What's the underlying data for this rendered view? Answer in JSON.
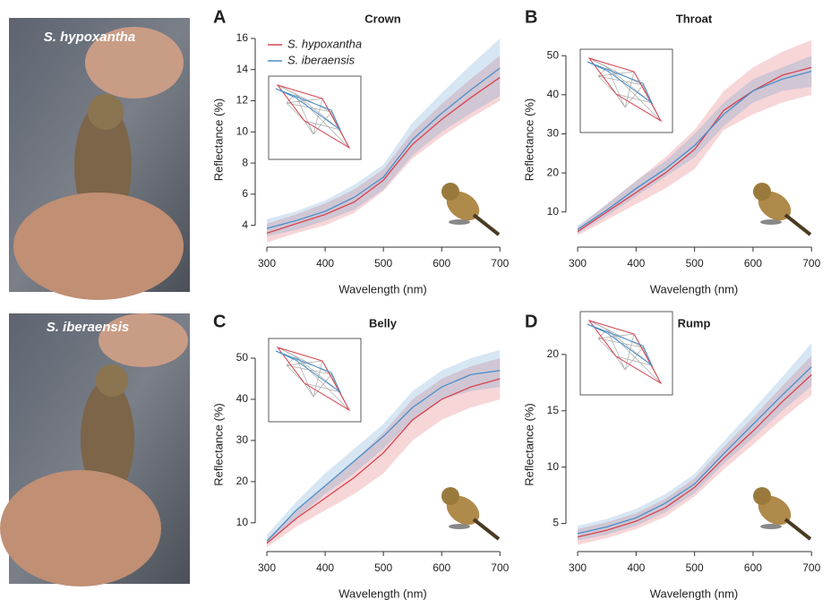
{
  "photos": [
    {
      "label": "S. hypoxantha"
    },
    {
      "label": "S. iberaensis"
    }
  ],
  "chart_data": [
    {
      "type": "line",
      "panel": "A",
      "title": "Crown",
      "x_label": "Wavelength (nm)",
      "y_label": "Reflectance (%)",
      "x": [
        300,
        350,
        400,
        450,
        500,
        550,
        600,
        650,
        700
      ],
      "xlim": [
        280,
        718
      ],
      "xticks": [
        300,
        400,
        500,
        600,
        700
      ],
      "ylim": [
        2.6,
        16.4
      ],
      "yticks": [
        4,
        6,
        8,
        10,
        12,
        14,
        16
      ],
      "legend": true,
      "series": [
        {
          "name": "S. hypoxantha",
          "color": "#d9434f",
          "values": [
            3.5,
            4.1,
            4.7,
            5.5,
            6.9,
            9.2,
            10.8,
            12.2,
            13.5
          ],
          "lower": [
            2.9,
            3.5,
            4.0,
            4.8,
            6.2,
            8.3,
            9.7,
            10.9,
            12.0
          ],
          "upper": [
            4.1,
            4.7,
            5.4,
            6.3,
            7.6,
            10.0,
            11.8,
            13.4,
            14.9
          ]
        },
        {
          "name": "S. iberaensis",
          "color": "#4a8fc9",
          "values": [
            3.8,
            4.3,
            4.9,
            5.8,
            7.1,
            9.5,
            11.2,
            12.7,
            14.1
          ],
          "lower": [
            3.3,
            3.7,
            4.3,
            5.0,
            6.3,
            8.5,
            10.0,
            11.2,
            12.3
          ],
          "upper": [
            4.4,
            4.9,
            5.6,
            6.6,
            7.9,
            10.6,
            12.5,
            14.3,
            16.0
          ]
        }
      ]
    },
    {
      "type": "line",
      "panel": "B",
      "title": "Throat",
      "x_label": "Wavelength (nm)",
      "y_label": "Reflectance (%)",
      "x": [
        300,
        350,
        400,
        450,
        500,
        550,
        600,
        650,
        700
      ],
      "xlim": [
        280,
        718
      ],
      "xticks": [
        300,
        400,
        500,
        600,
        700
      ],
      "ylim": [
        1,
        56
      ],
      "yticks": [
        10,
        20,
        30,
        40,
        50
      ],
      "series": [
        {
          "color": "#d9434f",
          "values": [
            5,
            10,
            15,
            20,
            26,
            36,
            41,
            45,
            47
          ],
          "lower": [
            4,
            8,
            12,
            16,
            21,
            31,
            35,
            38,
            40
          ],
          "upper": [
            6,
            12,
            18,
            24,
            31,
            41,
            47,
            51,
            54
          ]
        },
        {
          "color": "#4a8fc9",
          "values": [
            5.5,
            10.5,
            16,
            21,
            27,
            35,
            41,
            44,
            46
          ],
          "lower": [
            4.5,
            9,
            14,
            19,
            24,
            32,
            38,
            41,
            42
          ],
          "upper": [
            6.5,
            12,
            18,
            23,
            30,
            38,
            44,
            47,
            50
          ]
        }
      ]
    },
    {
      "type": "line",
      "panel": "C",
      "title": "Belly",
      "x_label": "Wavelength (nm)",
      "y_label": "Reflectance (%)",
      "x": [
        300,
        350,
        400,
        450,
        500,
        550,
        600,
        650,
        700
      ],
      "xlim": [
        280,
        718
      ],
      "xticks": [
        300,
        400,
        500,
        600,
        700
      ],
      "ylim": [
        3,
        55
      ],
      "yticks": [
        10,
        20,
        30,
        40,
        50
      ],
      "series": [
        {
          "color": "#d9434f",
          "values": [
            5,
            11,
            16,
            21,
            27,
            35,
            40,
            43,
            45
          ],
          "lower": [
            4,
            9,
            13,
            17,
            22,
            30,
            35,
            38,
            40
          ],
          "upper": [
            6,
            13,
            19,
            25,
            32,
            40,
            45,
            48,
            50
          ]
        },
        {
          "color": "#4a8fc9",
          "values": [
            5.5,
            13,
            19,
            25,
            31,
            38,
            43,
            46,
            47
          ],
          "lower": [
            5,
            11,
            17,
            22,
            28,
            35,
            40,
            42,
            43
          ],
          "upper": [
            7,
            15,
            22,
            28,
            34,
            42,
            47,
            50,
            52
          ]
        }
      ]
    },
    {
      "type": "line",
      "panel": "D",
      "title": "Rump",
      "x_label": "Wavelength (nm)",
      "y_label": "Reflectance (%)",
      "x": [
        300,
        350,
        400,
        450,
        500,
        550,
        600,
        650,
        700
      ],
      "xlim": [
        280,
        718
      ],
      "xticks": [
        300,
        400,
        500,
        600,
        700
      ],
      "ylim": [
        2.5,
        21.5
      ],
      "yticks": [
        5,
        10,
        15,
        20
      ],
      "series": [
        {
          "color": "#d9434f",
          "values": [
            3.8,
            4.4,
            5.2,
            6.4,
            8.2,
            10.8,
            13.2,
            15.8,
            18.2
          ],
          "lower": [
            3.1,
            3.7,
            4.5,
            5.6,
            7.4,
            9.8,
            12.0,
            14.3,
            16.4
          ],
          "upper": [
            4.5,
            5.1,
            5.9,
            7.2,
            9.0,
            11.8,
            14.4,
            17.2,
            19.9
          ]
        },
        {
          "color": "#4a8fc9",
          "values": [
            4.1,
            4.7,
            5.5,
            6.8,
            8.5,
            11.2,
            13.8,
            16.4,
            18.9
          ],
          "lower": [
            3.5,
            4.0,
            4.8,
            6.0,
            7.7,
            10.3,
            12.6,
            15.0,
            17.2
          ],
          "upper": [
            4.8,
            5.4,
            6.3,
            7.6,
            9.4,
            12.3,
            15.1,
            18.0,
            21.0
          ]
        }
      ]
    }
  ]
}
